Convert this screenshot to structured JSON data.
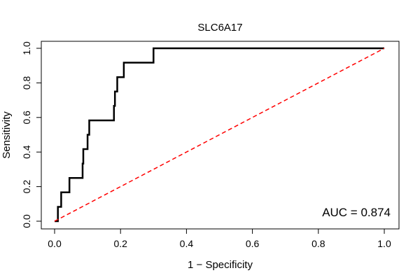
{
  "colors": {
    "roc_line": "#000000",
    "reference_line": "#ff0000",
    "frame": "#000000",
    "background": "#ffffff"
  },
  "chart_data": {
    "type": "line",
    "title": "SLC6A17",
    "xlabel": "1 − Specificity",
    "ylabel": "Sensitivity",
    "xlim": [
      0,
      1
    ],
    "ylim": [
      0,
      1
    ],
    "x_ticks": [
      0.0,
      0.2,
      0.4,
      0.6,
      0.8,
      1.0
    ],
    "x_tick_labels": [
      "0.0",
      "0.2",
      "0.4",
      "0.6",
      "0.8",
      "1.0"
    ],
    "y_ticks": [
      0.0,
      0.2,
      0.4,
      0.6,
      0.8,
      1.0
    ],
    "y_tick_labels": [
      "0.0",
      "0.2",
      "0.4",
      "0.6",
      "0.8",
      "1.0"
    ],
    "annotation": "AUC = 0.874",
    "series": [
      {
        "name": "ROC curve",
        "style": "solid",
        "points": [
          [
            0.0,
            0.0
          ],
          [
            0.01,
            0.0
          ],
          [
            0.01,
            0.083
          ],
          [
            0.02,
            0.083
          ],
          [
            0.02,
            0.167
          ],
          [
            0.045,
            0.167
          ],
          [
            0.045,
            0.25
          ],
          [
            0.085,
            0.25
          ],
          [
            0.085,
            0.333
          ],
          [
            0.087,
            0.333
          ],
          [
            0.087,
            0.417
          ],
          [
            0.1,
            0.417
          ],
          [
            0.1,
            0.5
          ],
          [
            0.105,
            0.5
          ],
          [
            0.105,
            0.583
          ],
          [
            0.18,
            0.583
          ],
          [
            0.18,
            0.667
          ],
          [
            0.183,
            0.667
          ],
          [
            0.183,
            0.75
          ],
          [
            0.19,
            0.75
          ],
          [
            0.19,
            0.833
          ],
          [
            0.21,
            0.833
          ],
          [
            0.21,
            0.917
          ],
          [
            0.3,
            0.917
          ],
          [
            0.3,
            1.0
          ],
          [
            1.0,
            1.0
          ]
        ]
      },
      {
        "name": "Reference",
        "style": "dashed",
        "points": [
          [
            0.0,
            0.0
          ],
          [
            1.0,
            1.0
          ]
        ]
      }
    ]
  }
}
